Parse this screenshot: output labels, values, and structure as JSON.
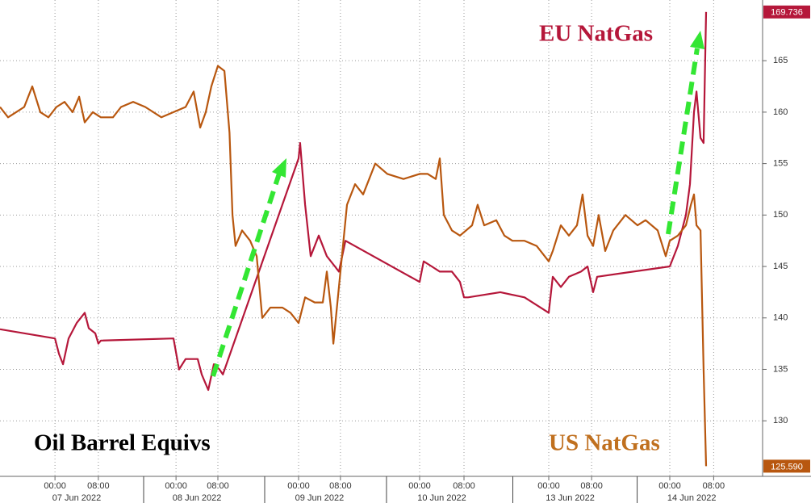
{
  "chart_data": {
    "type": "line",
    "annotations": [
      "EU NatGas",
      "US NatGas",
      "Oil Barrel Equivs"
    ],
    "xlim": [
      -10.9,
      140.3
    ],
    "ylim": [
      124.6,
      170.9
    ],
    "yticks": [
      130,
      135,
      140,
      145,
      150,
      155,
      160,
      165
    ],
    "xticks": [
      {
        "value": 0,
        "label": "00:00"
      },
      {
        "value": 8.6,
        "label": "08:00"
      },
      {
        "value": 24,
        "label": "00:00"
      },
      {
        "value": 32.3,
        "label": "08:00"
      },
      {
        "value": 48.3,
        "label": "00:00"
      },
      {
        "value": 56.6,
        "label": "08:00"
      },
      {
        "value": 72.3,
        "label": "00:00"
      },
      {
        "value": 81.1,
        "label": "08:00"
      },
      {
        "value": 97.9,
        "label": "00:00"
      },
      {
        "value": 106.4,
        "label": "08:00"
      },
      {
        "value": 121.9,
        "label": "00:00"
      },
      {
        "value": 130.6,
        "label": "08:00"
      }
    ],
    "dates": [
      "07 Jun 2022",
      "08 Jun 2022",
      "09 Jun 2022",
      "10 Jun 2022",
      "13 Jun 2022",
      "14 Jun 2022"
    ],
    "grid": true,
    "series": [
      {
        "name": "EU NatGas",
        "color": "#b5173a",
        "last_value": {
          "value": 169.736,
          "label": "169.736"
        },
        "x": [
          -10.9,
          0,
          0.8,
          1.6,
          2.7,
          4.3,
          5.9,
          6.7,
          8,
          8.6,
          9.1,
          23.5,
          24.6,
          25.9,
          28.3,
          29.1,
          30.4,
          31.5,
          32.6,
          33.3,
          48.3,
          48.6,
          49.6,
          50.7,
          52.3,
          53.9,
          55.5,
          56.3,
          57.6,
          72.3,
          73.1,
          74.7,
          76.3,
          78.7,
          80.3,
          81.1,
          81.9,
          88.3,
          93.1,
          97.9,
          98.7,
          100.3,
          101.9,
          104.3,
          105.6,
          106.7,
          107.5,
          121.9,
          123.5,
          125.1,
          125.9,
          126.7,
          127.2,
          128,
          128.6,
          129.1
        ],
        "values": [
          138.9,
          138,
          136.5,
          135.5,
          138,
          139.5,
          140.5,
          139,
          138.5,
          137.5,
          137.8,
          138,
          135,
          136,
          136,
          134.5,
          133,
          135.5,
          135,
          134.5,
          155.5,
          157,
          151,
          146,
          148,
          146,
          145,
          144.5,
          147.5,
          143.5,
          145.5,
          145,
          144.5,
          144.5,
          143.5,
          142,
          142,
          142.5,
          142,
          140.5,
          144,
          143,
          144,
          144.5,
          145,
          142.5,
          144,
          145,
          147,
          150,
          153,
          160,
          162,
          157.5,
          157,
          169.736
        ]
      },
      {
        "name": "US NatGas",
        "color": "#b8570f",
        "last_value": {
          "value": 125.59,
          "label": "125.590"
        },
        "x": [
          -10.9,
          -9.3,
          -7.7,
          -6.1,
          -4.5,
          -2.9,
          -1.3,
          0.3,
          1.9,
          3.5,
          4.8,
          5.9,
          7.5,
          9.1,
          11.5,
          13.1,
          15.5,
          17.9,
          21.1,
          23.5,
          25.9,
          27.5,
          28.8,
          29.9,
          31,
          32.3,
          33.6,
          34.6,
          35.2,
          35.8,
          37.1,
          38.7,
          40,
          41.1,
          42.7,
          45.1,
          46.7,
          48.3,
          49.6,
          51.5,
          53.1,
          53.9,
          54.7,
          55.2,
          56.3,
          57.9,
          59.5,
          61.1,
          63.5,
          65.9,
          69.1,
          72.3,
          73.9,
          75.5,
          76.3,
          77.1,
          78.7,
          80.3,
          82.7,
          83.8,
          85.1,
          87.5,
          89.1,
          90.7,
          93.1,
          95.5,
          97.9,
          98.7,
          100.3,
          101.9,
          103.5,
          104.6,
          105.6,
          106.7,
          107.8,
          109.1,
          110.7,
          113.1,
          115.5,
          117.1,
          119.5,
          121.1,
          121.9,
          123.5,
          125.1,
          126.1,
          126.7,
          127.2,
          128,
          128.6,
          129.1
        ],
        "values": [
          160.5,
          159.5,
          160,
          160.5,
          162.5,
          160,
          159.5,
          160.5,
          161,
          160,
          161.5,
          159,
          160,
          159.5,
          159.5,
          160.5,
          161,
          160.5,
          159.5,
          160,
          160.5,
          162,
          158.5,
          160,
          162.5,
          164.5,
          164,
          158,
          150,
          147,
          148.5,
          147.5,
          146,
          140,
          141,
          141,
          140.5,
          139.5,
          142,
          141.5,
          141.5,
          144.5,
          141,
          137.5,
          143,
          151,
          153,
          152,
          155,
          154,
          153.5,
          154,
          154,
          153.5,
          155.5,
          150,
          148.5,
          148,
          149,
          151,
          149,
          149.5,
          148,
          147.5,
          147.5,
          147,
          145.5,
          146.5,
          149,
          148,
          149,
          152,
          148,
          147,
          150,
          146.5,
          148.5,
          150,
          149,
          149.5,
          148.5,
          146,
          147.5,
          148,
          149,
          151,
          152,
          149,
          148.5,
          135,
          125.59
        ]
      }
    ]
  }
}
